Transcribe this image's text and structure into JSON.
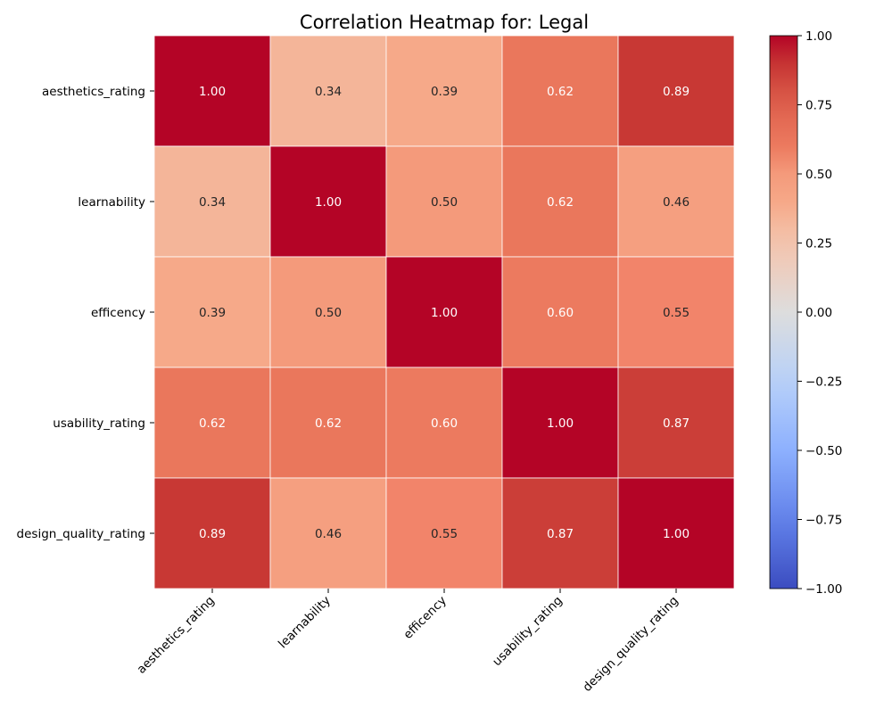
{
  "chart_data": {
    "type": "heatmap",
    "title": "Correlation Heatmap for: Legal",
    "xlabel": "",
    "ylabel": "",
    "rows": [
      "aesthetics_rating",
      "learnability",
      "efficency",
      "usability_rating",
      "design_quality_rating"
    ],
    "columns": [
      "aesthetics_rating",
      "learnability",
      "efficency",
      "usability_rating",
      "design_quality_rating"
    ],
    "values": [
      [
        1.0,
        0.34,
        0.39,
        0.62,
        0.89
      ],
      [
        0.34,
        1.0,
        0.5,
        0.62,
        0.46
      ],
      [
        0.39,
        0.5,
        1.0,
        0.6,
        0.55
      ],
      [
        0.62,
        0.62,
        0.6,
        1.0,
        0.87
      ],
      [
        0.89,
        0.46,
        0.55,
        0.87,
        1.0
      ]
    ],
    "value_format": "0.00",
    "colormap": "coolwarm",
    "vmin": -1.0,
    "vmax": 1.0,
    "colorbar": {
      "ticks": [
        -1.0,
        -0.75,
        -0.5,
        -0.25,
        0.0,
        0.25,
        0.5,
        0.75,
        1.0
      ],
      "tick_labels": [
        "−1.00",
        "−0.75",
        "−0.50",
        "−0.25",
        "0.00",
        "0.25",
        "0.50",
        "0.75",
        "1.00"
      ]
    },
    "cell_border_color": "#ffffff",
    "grid": false
  }
}
